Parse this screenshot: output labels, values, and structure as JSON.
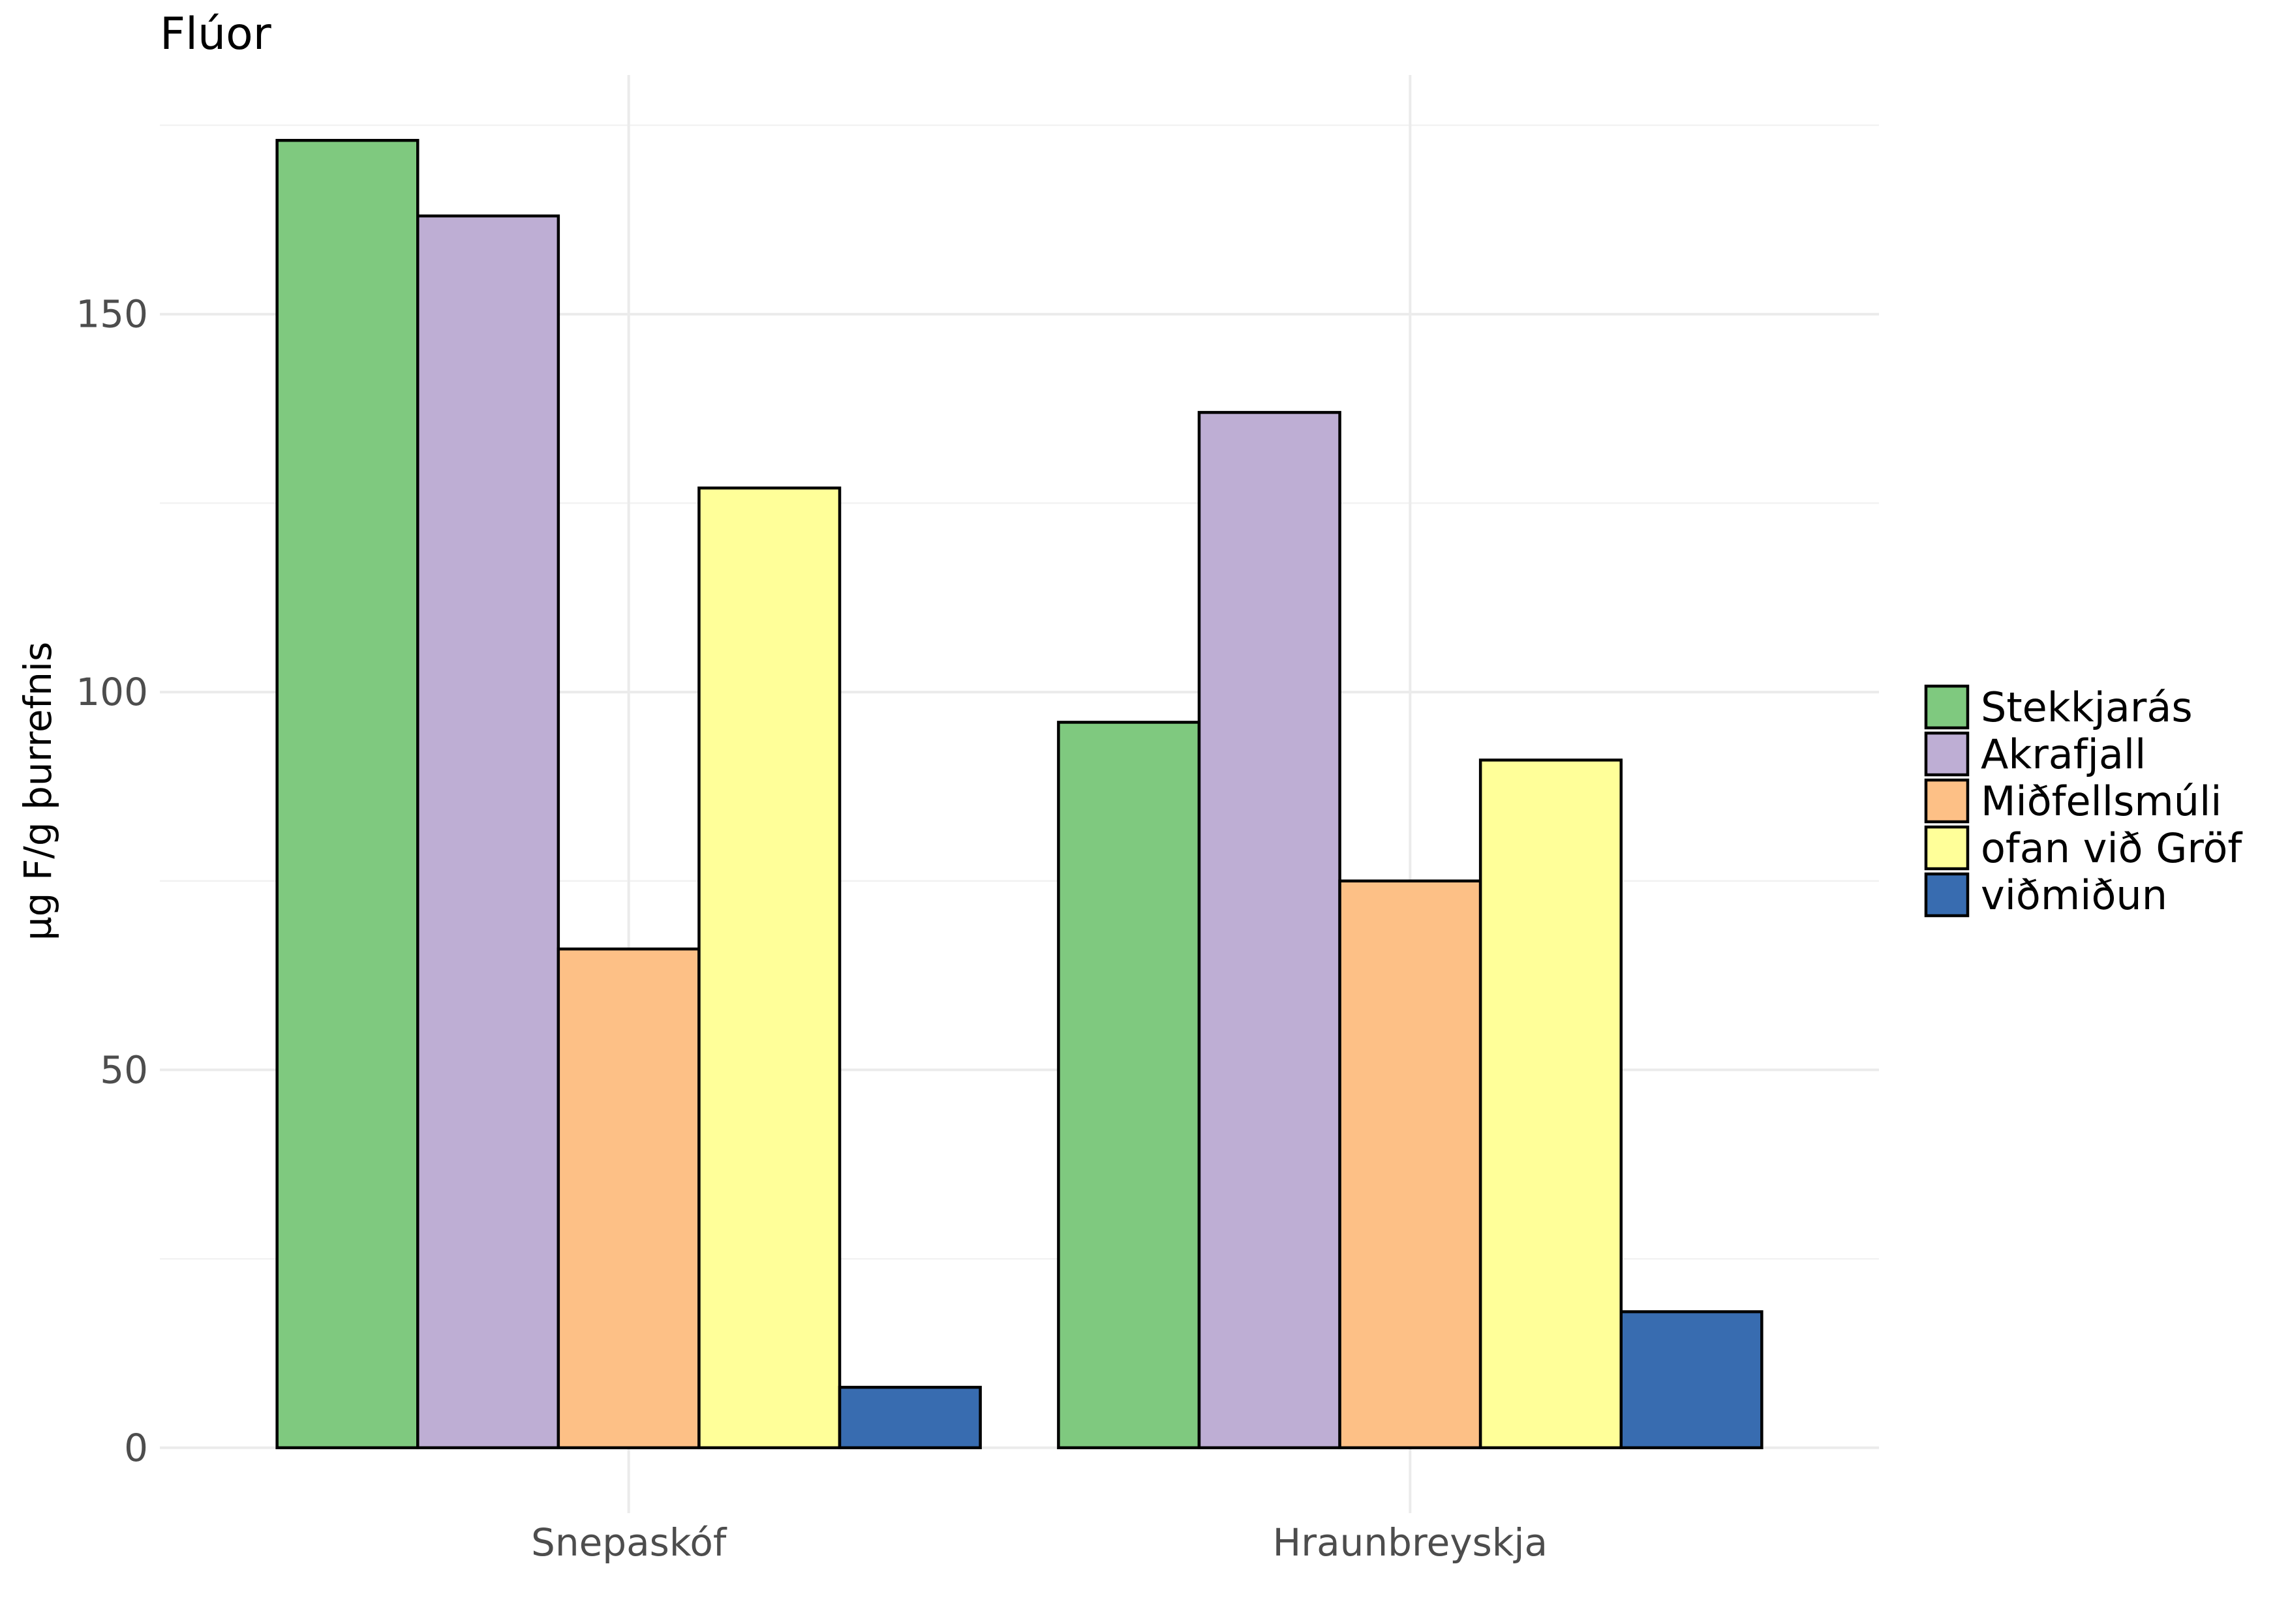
{
  "chart_data": {
    "type": "bar",
    "title": "Flúor",
    "xlabel": "",
    "ylabel": "µg F/g þurrefnis",
    "categories": [
      "Snepaskóf",
      "Hraunbreyskja"
    ],
    "series": [
      {
        "name": "Stekkjarás",
        "color": "#7fc97f",
        "values": [
          173,
          96
        ]
      },
      {
        "name": "Akrafjall",
        "color": "#beaed4",
        "values": [
          163,
          137
        ]
      },
      {
        "name": "Miðfellsmúli",
        "color": "#fdc086",
        "values": [
          66,
          75
        ]
      },
      {
        "name": "ofan við Gröf",
        "color": "#ffff99",
        "values": [
          127,
          91
        ]
      },
      {
        "name": "viðmiðun",
        "color": "#386cb0",
        "values": [
          8,
          18
        ]
      }
    ],
    "yticks": [
      0,
      50,
      100,
      150
    ],
    "ylim": [
      -8.65,
      181.65
    ],
    "grid": true,
    "legend_position": "right"
  }
}
